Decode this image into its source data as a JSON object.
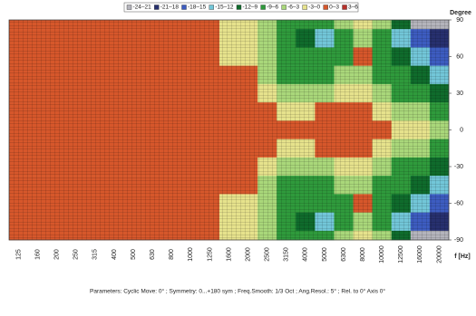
{
  "chart_data": {
    "type": "heatmap",
    "legend": [
      {
        "name": "-24–21",
        "color": "#b4b4bc",
        "range": [
          -24,
          -21
        ]
      },
      {
        "name": "-21–18",
        "color": "#27306e",
        "range": [
          -21,
          -18
        ]
      },
      {
        "name": "-18–15",
        "color": "#3d5cc0",
        "range": [
          -18,
          -15
        ]
      },
      {
        "name": "-15–12",
        "color": "#72c6d8",
        "range": [
          -15,
          -12
        ]
      },
      {
        "name": "-12–9",
        "color": "#0f6b2c",
        "range": [
          -12,
          -9
        ]
      },
      {
        "name": "-9–6",
        "color": "#2f9a3c",
        "range": [
          -9,
          -6
        ]
      },
      {
        "name": "-6–3",
        "color": "#a9d77a",
        "range": [
          -6,
          -3
        ]
      },
      {
        "name": "-3–0",
        "color": "#e6e28c",
        "range": [
          -3,
          0
        ]
      },
      {
        "name": "0–3",
        "color": "#d6572b",
        "range": [
          0,
          3
        ]
      },
      {
        "name": "3–6",
        "color": "#b8302a",
        "range": [
          3,
          6
        ]
      }
    ],
    "categories": [
      "125",
      "160",
      "200",
      "250",
      "315",
      "400",
      "500",
      "630",
      "800",
      "1000",
      "1250",
      "1600",
      "2000",
      "2500",
      "3150",
      "4000",
      "5000",
      "6300",
      "8000",
      "10000",
      "12500",
      "16000",
      "20000"
    ],
    "xlabel": "f [Hz]",
    "ylabel": "Degree",
    "y": [
      90,
      75,
      60,
      45,
      30,
      15,
      0,
      -15,
      -30,
      -45,
      -60,
      -75,
      -90
    ],
    "ylim": [
      -90,
      90
    ],
    "yticks": [
      90,
      60,
      30,
      0,
      -30,
      -60,
      -90
    ],
    "z": [
      [
        1,
        1,
        1,
        1,
        1,
        1,
        1,
        1,
        1,
        1,
        1,
        -1.5,
        -1.5,
        -4,
        -7,
        -7,
        -7,
        -4,
        -1.5,
        -4,
        -10,
        -22,
        -22
      ],
      [
        1,
        1,
        1,
        1,
        1,
        1,
        1,
        1,
        1,
        1,
        1,
        -1.5,
        -1.5,
        -4,
        -7,
        -10,
        -13,
        -7,
        -4,
        -7,
        -13,
        -16,
        -19
      ],
      [
        1,
        1,
        1,
        1,
        1,
        1,
        1,
        1,
        1,
        1,
        1,
        -1.5,
        -1.5,
        -4,
        -7,
        -7,
        -7,
        -7,
        1,
        -7,
        -10,
        -13,
        -16
      ],
      [
        1,
        1,
        1,
        1,
        1,
        1,
        1,
        1,
        1,
        1,
        1,
        1,
        1,
        -4,
        -7,
        -7,
        -7,
        -4,
        -4,
        -7,
        -7,
        -10,
        -13
      ],
      [
        1,
        1,
        1,
        1,
        1,
        1,
        1,
        1,
        1,
        1,
        1,
        1,
        1,
        -1.5,
        -4,
        -4,
        -4,
        -1.5,
        -1.5,
        -4,
        -7,
        -7,
        -10
      ],
      [
        1,
        1,
        1,
        1,
        1,
        1,
        1,
        1,
        1,
        1,
        1,
        1,
        1,
        1,
        -1.5,
        -1.5,
        1,
        1,
        1,
        -1.5,
        -4,
        -4,
        -7
      ],
      [
        1,
        1,
        1,
        1,
        1,
        1,
        1,
        1,
        1,
        1,
        1,
        1,
        1,
        1,
        1,
        1,
        1,
        1,
        1,
        1,
        -1.5,
        -1.5,
        -4
      ],
      [
        1,
        1,
        1,
        1,
        1,
        1,
        1,
        1,
        1,
        1,
        1,
        1,
        1,
        1,
        -1.5,
        -1.5,
        1,
        1,
        1,
        -1.5,
        -4,
        -4,
        -7
      ],
      [
        1,
        1,
        1,
        1,
        1,
        1,
        1,
        1,
        1,
        1,
        1,
        1,
        1,
        -1.5,
        -4,
        -4,
        -4,
        -1.5,
        -1.5,
        -4,
        -7,
        -7,
        -10
      ],
      [
        1,
        1,
        1,
        1,
        1,
        1,
        1,
        1,
        1,
        1,
        1,
        1,
        1,
        -4,
        -7,
        -7,
        -7,
        -4,
        -4,
        -7,
        -7,
        -10,
        -13
      ],
      [
        1,
        1,
        1,
        1,
        1,
        1,
        1,
        1,
        1,
        1,
        1,
        -1.5,
        -1.5,
        -4,
        -7,
        -7,
        -7,
        -7,
        1,
        -7,
        -10,
        -13,
        -16
      ],
      [
        1,
        1,
        1,
        1,
        1,
        1,
        1,
        1,
        1,
        1,
        1,
        -1.5,
        -1.5,
        -4,
        -7,
        -10,
        -13,
        -7,
        -4,
        -7,
        -13,
        -16,
        -19
      ],
      [
        1,
        1,
        1,
        1,
        1,
        1,
        1,
        1,
        1,
        1,
        1,
        -1.5,
        -1.5,
        -4,
        -7,
        -7,
        -7,
        -4,
        -1.5,
        -4,
        -10,
        -22,
        -22
      ]
    ],
    "footer": "Parameters:  Cyclic Move: 0°  ;  Symmetry: 0...+180 sym  ;  Freq.Smooth: 1/3  Oct  ;  Ang.Resol.: 5°  ;  Rel. to 0° Axis  0°"
  }
}
